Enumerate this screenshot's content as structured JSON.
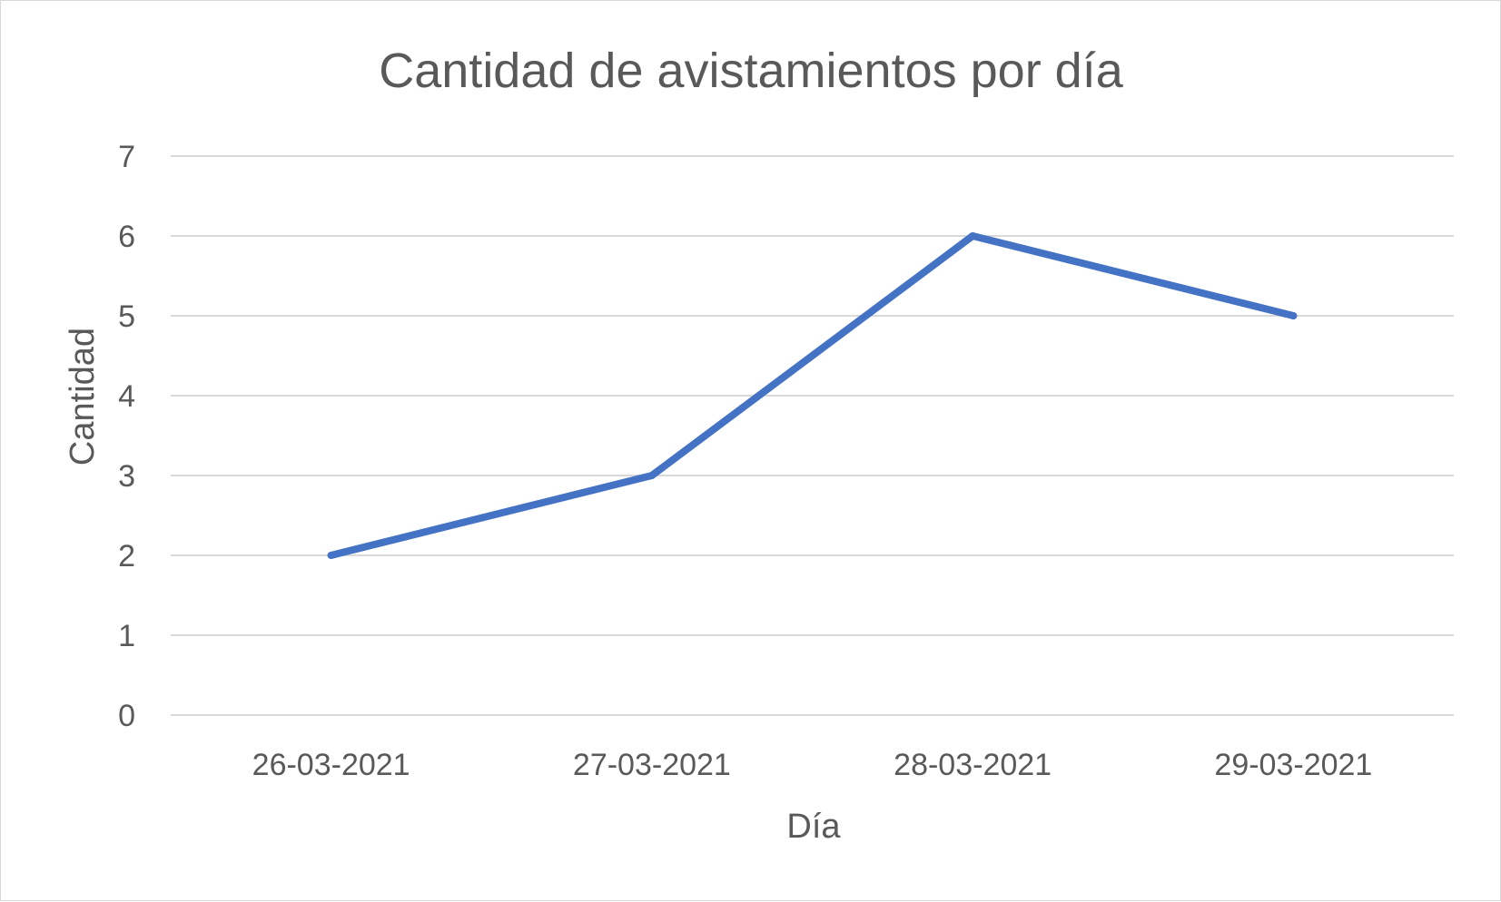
{
  "chart_data": {
    "type": "line",
    "title": "Cantidad de avistamientos por día",
    "xlabel": "Día",
    "ylabel": "Cantidad",
    "categories": [
      "26-03-2021",
      "27-03-2021",
      "28-03-2021",
      "29-03-2021"
    ],
    "series": [
      {
        "values": [
          2,
          3,
          6,
          5
        ],
        "color": "#4472c4"
      }
    ],
    "ylim": [
      0,
      7
    ],
    "yticks": [
      0,
      1,
      2,
      3,
      4,
      5,
      6,
      7
    ],
    "grid": true,
    "legend": "none"
  }
}
